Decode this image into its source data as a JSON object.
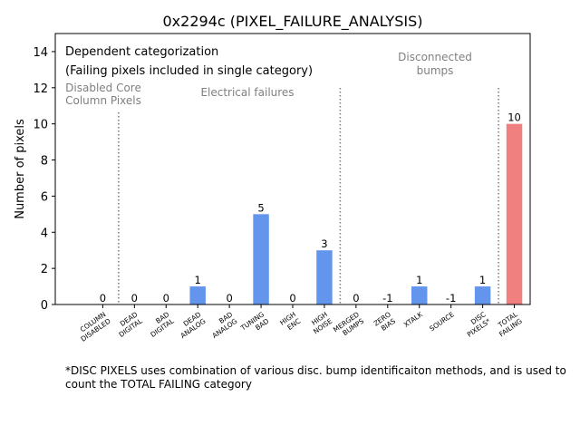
{
  "chart_data": {
    "type": "bar",
    "title": "0x2294c (PIXEL_FAILURE_ANALYSIS)",
    "ylabel": "Number of pixels",
    "xlabel": "",
    "ylim": [
      0,
      15
    ],
    "yticks": [
      0,
      2,
      4,
      6,
      8,
      10,
      12,
      14
    ],
    "categories": [
      [
        "COLUMN",
        "DISABLED"
      ],
      [
        "DEAD",
        "DIGITAL"
      ],
      [
        "BAD",
        "DIGITAL"
      ],
      [
        "DEAD",
        "ANALOG"
      ],
      [
        "BAD",
        "ANALOG"
      ],
      [
        "TUNING",
        "BAD"
      ],
      [
        "HIGH",
        "ENC"
      ],
      [
        "HIGH",
        "NOISE"
      ],
      [
        "MERGED",
        "BUMPS"
      ],
      [
        "ZERO",
        "BIAS"
      ],
      [
        "XTALK"
      ],
      [
        "SOURCE"
      ],
      [
        "DISC",
        "PIXELS*"
      ],
      [
        "TOTAL",
        "FAILING"
      ]
    ],
    "values": [
      0,
      0,
      0,
      1,
      0,
      5,
      0,
      3,
      0,
      -1,
      1,
      -1,
      1,
      10
    ],
    "value_labels": [
      "0",
      "0",
      "0",
      "1",
      "0",
      "5",
      "0",
      "3",
      "0",
      "-1",
      "1",
      "-1",
      "1",
      "10"
    ],
    "bar_colors": [
      "#6495ed",
      "#6495ed",
      "#6495ed",
      "#6495ed",
      "#6495ed",
      "#6495ed",
      "#6495ed",
      "#6495ed",
      "#6495ed",
      "#6495ed",
      "#6495ed",
      "#6495ed",
      "#6495ed",
      "#f08080"
    ],
    "separators_after_index": [
      0,
      7,
      12
    ],
    "section_labels": [
      [
        "Disabled Core",
        "Column Pixels"
      ],
      [
        "Electrical failures"
      ],
      [
        "Disconnected",
        "bumps"
      ]
    ],
    "annotations": [
      "Dependent categorization",
      "(Failing pixels included in single category)"
    ],
    "legend": "none",
    "grid": false
  },
  "footnote": "*DISC PIXELS uses combination of various disc. bump identificaiton methods, and is used to count the TOTAL FAILING category"
}
